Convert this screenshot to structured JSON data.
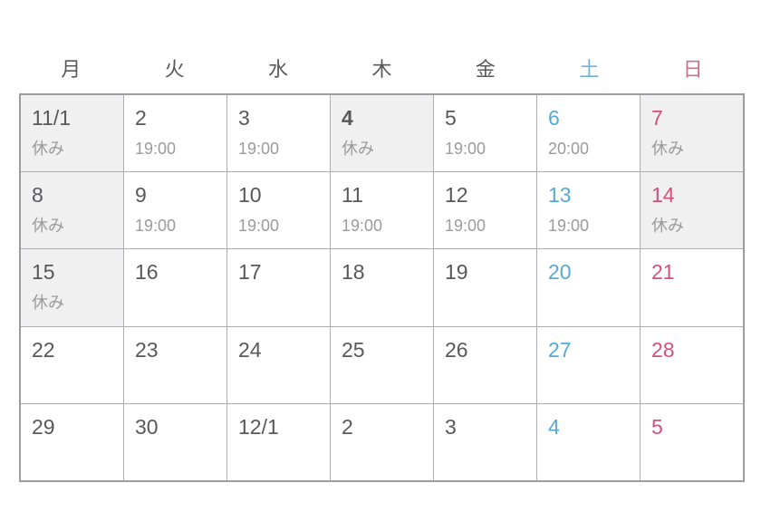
{
  "weekday_header": {
    "items": [
      {
        "label": "月"
      },
      {
        "label": "火"
      },
      {
        "label": "水"
      },
      {
        "label": "木"
      },
      {
        "label": "金"
      },
      {
        "label": "土"
      },
      {
        "label": "日"
      }
    ]
  },
  "calendar": {
    "weeks": [
      {
        "days": [
          {
            "date": "11/1",
            "note": "休み"
          },
          {
            "date": "2",
            "note": "19:00"
          },
          {
            "date": "3",
            "note": "19:00"
          },
          {
            "date": "4",
            "note": "休み"
          },
          {
            "date": "5",
            "note": "19:00"
          },
          {
            "date": "6",
            "note": "20:00"
          },
          {
            "date": "7",
            "note": "休み"
          }
        ]
      },
      {
        "days": [
          {
            "date": "8",
            "note": "休み"
          },
          {
            "date": "9",
            "note": "19:00"
          },
          {
            "date": "10",
            "note": "19:00"
          },
          {
            "date": "11",
            "note": "19:00"
          },
          {
            "date": "12",
            "note": "19:00"
          },
          {
            "date": "13",
            "note": "19:00"
          },
          {
            "date": "14",
            "note": "休み"
          }
        ]
      },
      {
        "days": [
          {
            "date": "15",
            "note": "休み"
          },
          {
            "date": "16",
            "note": ""
          },
          {
            "date": "17",
            "note": ""
          },
          {
            "date": "18",
            "note": ""
          },
          {
            "date": "19",
            "note": ""
          },
          {
            "date": "20",
            "note": ""
          },
          {
            "date": "21",
            "note": ""
          }
        ]
      },
      {
        "days": [
          {
            "date": "22",
            "note": ""
          },
          {
            "date": "23",
            "note": ""
          },
          {
            "date": "24",
            "note": ""
          },
          {
            "date": "25",
            "note": ""
          },
          {
            "date": "26",
            "note": ""
          },
          {
            "date": "27",
            "note": ""
          },
          {
            "date": "28",
            "note": ""
          }
        ]
      },
      {
        "days": [
          {
            "date": "29",
            "note": ""
          },
          {
            "date": "30",
            "note": ""
          },
          {
            "date": "12/1",
            "note": ""
          },
          {
            "date": "2",
            "note": ""
          },
          {
            "date": "3",
            "note": ""
          },
          {
            "date": "4",
            "note": ""
          },
          {
            "date": "5",
            "note": ""
          }
        ]
      }
    ]
  },
  "colors": {
    "saturday_accent": "#55aad7",
    "sunday_accent": "#d34f7e",
    "date_text": "#58585b",
    "note_text": "#9b9b9b",
    "closed_day_bg": "#f1f0f1",
    "grid_border": "#9d9da1"
  }
}
